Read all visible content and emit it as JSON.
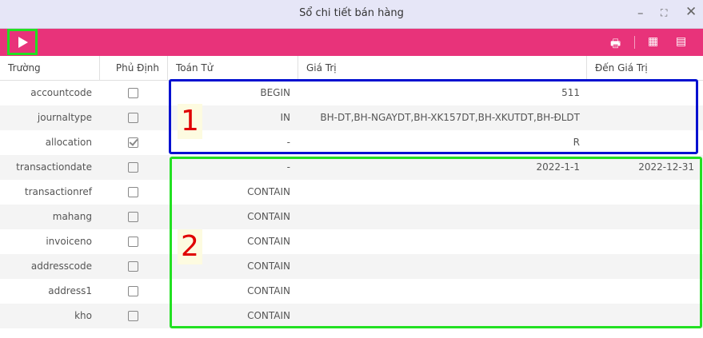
{
  "window": {
    "title": "Sổ chi tiết bán hàng",
    "minimize_icon": "minimize-icon",
    "maximize_icon": "maximize-icon",
    "close_icon": "close-icon"
  },
  "toolbar": {
    "run_icon": "play-icon",
    "print_icon": "print-icon",
    "export_icon": "export-icon",
    "film_icon": "film-icon",
    "color": "#e8337a"
  },
  "columns": [
    "Trường",
    "Phủ Định",
    "Toán Tử",
    "Giá Trị",
    "Đến Giá Trị"
  ],
  "rows": [
    {
      "field": "accountcode",
      "negate": false,
      "op": "BEGIN",
      "value": "511",
      "to": ""
    },
    {
      "field": "journaltype",
      "negate": false,
      "op": "IN",
      "value": "BH-DT,BH-NGAYDT,BH-XK157DT,BH-XKUTDT,BH-ĐLDT",
      "to": ""
    },
    {
      "field": "allocation",
      "negate": true,
      "op": "-",
      "value": "R",
      "to": ""
    },
    {
      "field": "transactiondate",
      "negate": false,
      "op": "-",
      "value": "2022-1-1",
      "to": "2022-12-31"
    },
    {
      "field": "transactionref",
      "negate": false,
      "op": "CONTAIN",
      "value": "",
      "to": ""
    },
    {
      "field": "mahang",
      "negate": false,
      "op": "CONTAIN",
      "value": "",
      "to": ""
    },
    {
      "field": "invoiceno",
      "negate": false,
      "op": "CONTAIN",
      "value": "",
      "to": ""
    },
    {
      "field": "addresscode",
      "negate": false,
      "op": "CONTAIN",
      "value": "",
      "to": ""
    },
    {
      "field": "address1",
      "negate": false,
      "op": "CONTAIN",
      "value": "",
      "to": ""
    },
    {
      "field": "kho",
      "negate": false,
      "op": "CONTAIN",
      "value": "",
      "to": ""
    }
  ],
  "annotations": {
    "label1": "1",
    "label2": "2",
    "color1": "#0010d0",
    "color2": "#22e022"
  }
}
